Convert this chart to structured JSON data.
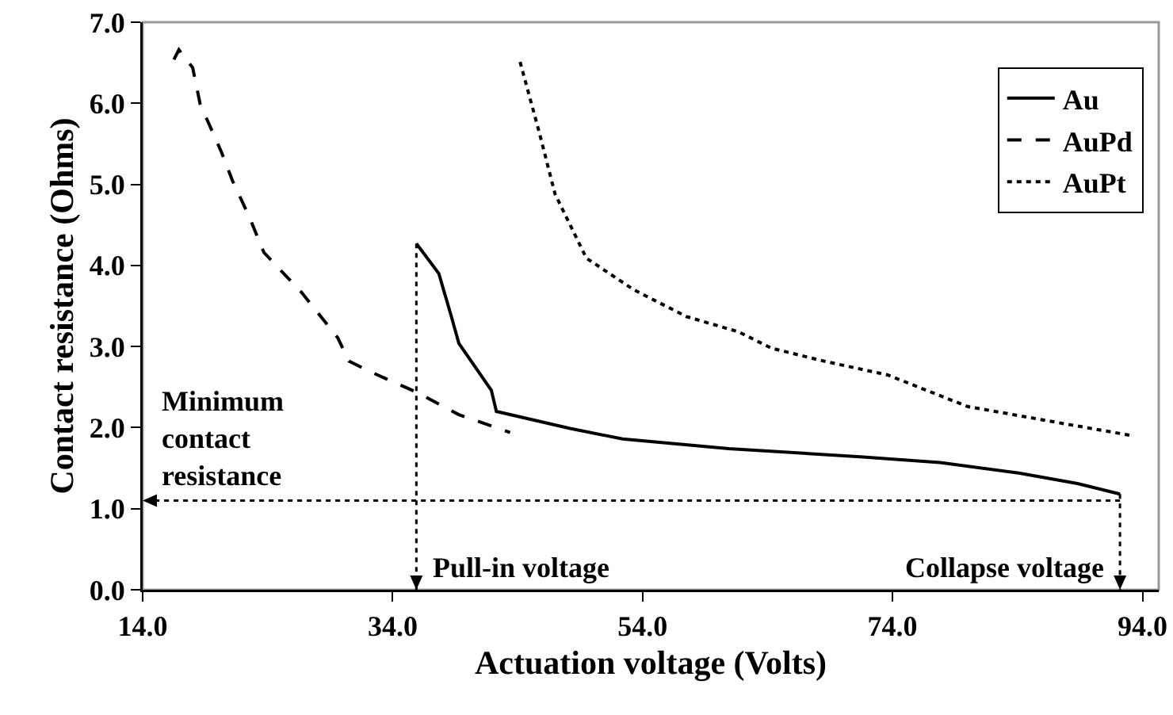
{
  "chart_data": {
    "type": "line",
    "xlabel": "Actuation voltage (Volts)",
    "ylabel": "Contact resistance (Ohms)",
    "xlim": [
      14,
      95.3
    ],
    "xticks": [
      {
        "value": 14,
        "label": "14.0"
      },
      {
        "value": 34,
        "label": "34.0"
      },
      {
        "value": 54,
        "label": "54.0"
      },
      {
        "value": 74,
        "label": "74.0"
      },
      {
        "value": 94,
        "label": "94.0"
      }
    ],
    "ylim": [
      0,
      7
    ],
    "yticks": [
      {
        "value": 0,
        "label": "0.0"
      },
      {
        "value": 1,
        "label": "1.0"
      },
      {
        "value": 2,
        "label": "2.0"
      },
      {
        "value": 3,
        "label": "3.0"
      },
      {
        "value": 4,
        "label": "4.0"
      },
      {
        "value": 5,
        "label": "5.0"
      },
      {
        "value": 6,
        "label": "6.0"
      },
      {
        "value": 7,
        "label": "7.0"
      }
    ],
    "grid": false,
    "legend": "top right",
    "marker": "none",
    "series": [
      {
        "name": "Au",
        "color": "#000000",
        "line_style": "solid",
        "x": [
          35.9,
          37.7,
          38.7,
          39.3,
          41.9,
          42.3,
          48.2,
          52.4,
          60.9,
          71.4,
          77.8,
          84.1,
          88.8,
          92.2
        ],
        "values": [
          4.27,
          3.9,
          3.37,
          3.04,
          2.46,
          2.2,
          1.99,
          1.86,
          1.74,
          1.64,
          1.57,
          1.44,
          1.31,
          1.18
        ]
      },
      {
        "name": "AuPd",
        "color": "#000000",
        "line_style": "dashed",
        "x": [
          16.5,
          16.9,
          18.0,
          18.6,
          20.3,
          21.2,
          22.5,
          23.7,
          26.7,
          29.6,
          30.5,
          32.2,
          36.0,
          39.3,
          43.4
        ],
        "values": [
          6.54,
          6.66,
          6.44,
          5.99,
          5.4,
          5.04,
          4.61,
          4.16,
          3.67,
          3.11,
          2.82,
          2.69,
          2.43,
          2.16,
          1.94
        ]
      },
      {
        "name": "AuPt",
        "color": "#000000",
        "line_style": "dotted",
        "x": [
          44.2,
          45.7,
          47.0,
          49.5,
          53.3,
          57.5,
          61.7,
          64.3,
          68.5,
          73.6,
          80.0,
          88.4,
          93.2
        ],
        "values": [
          6.51,
          5.66,
          4.88,
          4.09,
          3.7,
          3.37,
          3.18,
          2.98,
          2.82,
          2.65,
          2.26,
          2.03,
          1.9
        ]
      }
    ],
    "ref_lines": [
      {
        "axis": "x",
        "value": 35.9,
        "label": "Pull-in voltage",
        "line_style": "dotted",
        "color": "#000000"
      },
      {
        "axis": "x",
        "value": 92.2,
        "label": "Collapse voltage",
        "line_style": "dotted",
        "color": "#000000"
      },
      {
        "axis": "y",
        "value": 1.1,
        "label": "Minimum contact resistance",
        "line_style": "dotted",
        "color": "#000000"
      }
    ]
  }
}
